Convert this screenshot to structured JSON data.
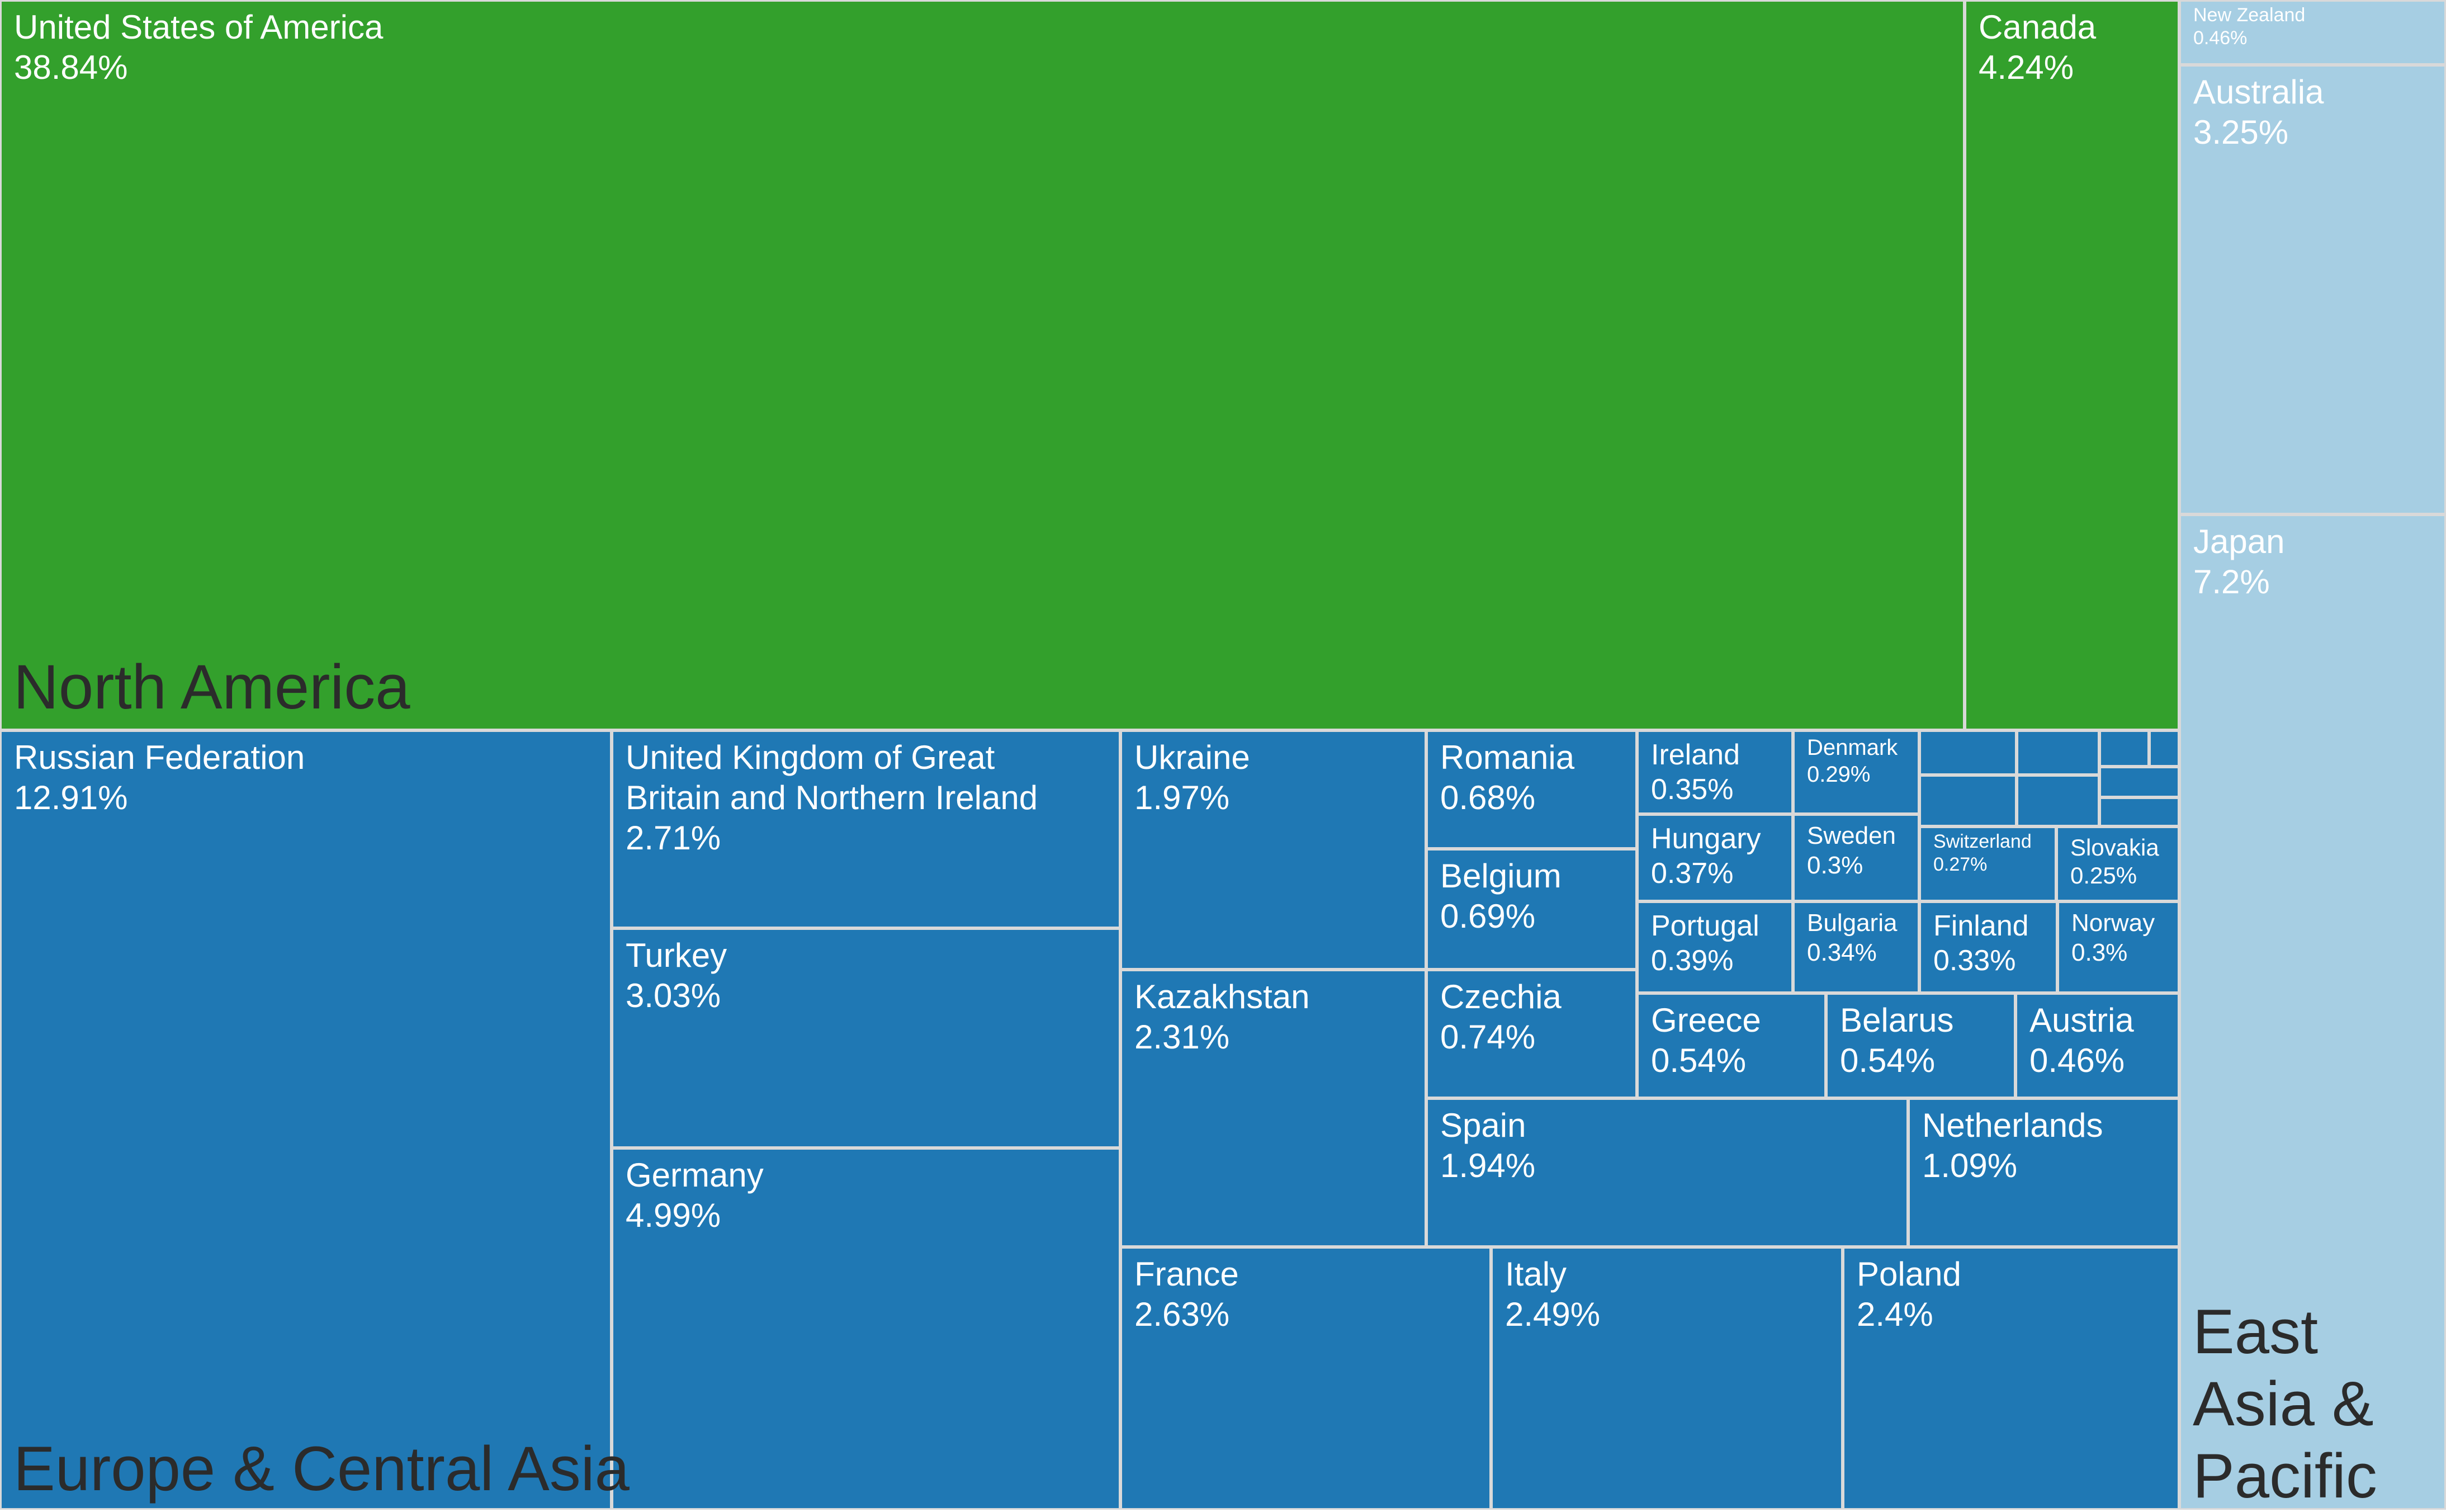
{
  "chart_data": {
    "type": "treemap",
    "unit": "%",
    "colors": {
      "North America": "#33a02c",
      "Europe & Central Asia": "#1f78b4",
      "East Asia & Pacific": "#a6cee3"
    },
    "regions": [
      {
        "name": "North America",
        "countries": [
          {
            "name": "United States of America",
            "value": 38.84
          },
          {
            "name": "Canada",
            "value": 4.24
          }
        ]
      },
      {
        "name": "Europe & Central Asia",
        "countries": [
          {
            "name": "Russian Federation",
            "value": 12.91
          },
          {
            "name": "United Kingdom of Great Britain and Northern Ireland",
            "value": 2.71
          },
          {
            "name": "Turkey",
            "value": 3.03
          },
          {
            "name": "Germany",
            "value": 4.99
          },
          {
            "name": "Ukraine",
            "value": 1.97
          },
          {
            "name": "Kazakhstan",
            "value": 2.31
          },
          {
            "name": "Romania",
            "value": 0.68
          },
          {
            "name": "Belgium",
            "value": 0.69
          },
          {
            "name": "Czechia",
            "value": 0.74
          },
          {
            "name": "Ireland",
            "value": 0.35
          },
          {
            "name": "Hungary",
            "value": 0.37
          },
          {
            "name": "Portugal",
            "value": 0.39
          },
          {
            "name": "Denmark",
            "value": 0.29
          },
          {
            "name": "Sweden",
            "value": 0.3
          },
          {
            "name": "Bulgaria",
            "value": 0.34
          },
          {
            "name": "Switzerland",
            "value": 0.27
          },
          {
            "name": "Slovakia",
            "value": 0.25
          },
          {
            "name": "Finland",
            "value": 0.33
          },
          {
            "name": "Norway",
            "value": 0.3
          },
          {
            "name": "Greece",
            "value": 0.54
          },
          {
            "name": "Belarus",
            "value": 0.54
          },
          {
            "name": "Austria",
            "value": 0.46
          },
          {
            "name": "Spain",
            "value": 1.94
          },
          {
            "name": "Netherlands",
            "value": 1.09
          },
          {
            "name": "France",
            "value": 2.63
          },
          {
            "name": "Italy",
            "value": 2.49
          },
          {
            "name": "Poland",
            "value": 2.4
          }
        ]
      },
      {
        "name": "East Asia & Pacific",
        "countries": [
          {
            "name": "New Zealand",
            "value": 0.46
          },
          {
            "name": "Australia",
            "value": 3.25
          },
          {
            "name": "Japan",
            "value": 7.2
          }
        ]
      }
    ]
  }
}
